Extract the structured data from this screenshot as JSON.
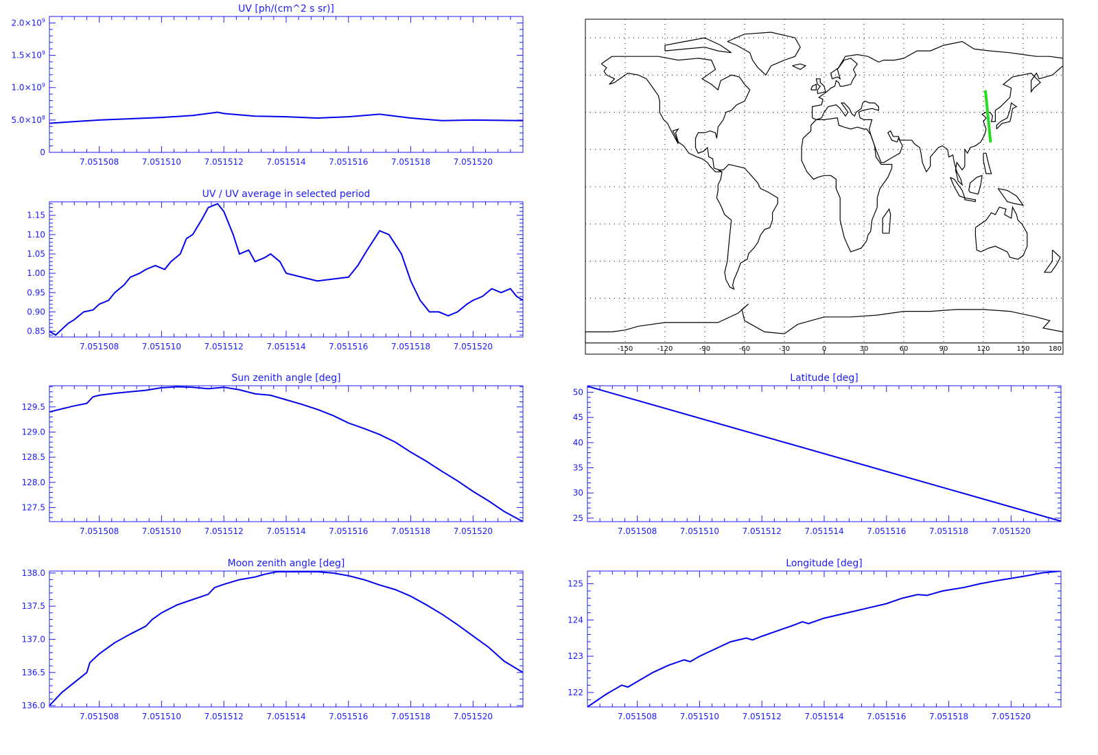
{
  "colors": {
    "axis": "#1a1aff",
    "line": "#0000ee",
    "track": "#22dd22",
    "map": "#000000",
    "grid": "#000000"
  },
  "chart_data": [
    {
      "id": "uv",
      "type": "line",
      "title": "UV [ph/(cm^2 s sr)]",
      "xlim": [
        7.0515064,
        7.0515216
      ],
      "ylim": [
        0,
        2100000000
      ],
      "xticks": [
        "7.051508",
        "7.051510",
        "7.051512",
        "7.051514",
        "7.051516",
        "7.051518",
        "7.051520"
      ],
      "xtick_values": [
        7.051508,
        7.05151,
        7.051512,
        7.051514,
        7.051516,
        7.051518,
        7.05152
      ],
      "yticks": [
        {
          "value": 0,
          "m": "0",
          "e": ""
        },
        {
          "value": 500000000,
          "m": "5.0×10",
          "e": "8"
        },
        {
          "value": 1000000000,
          "m": "1.0×10",
          "e": "9"
        },
        {
          "value": 1500000000,
          "m": "1.5×10",
          "e": "9"
        },
        {
          "value": 2000000000,
          "m": "2.0×10",
          "e": "9"
        }
      ],
      "x": [
        7.0515064,
        7.051507,
        7.051508,
        7.051509,
        7.05151,
        7.051511,
        7.0515118,
        7.051512,
        7.051513,
        7.051514,
        7.051515,
        7.051516,
        7.051517,
        7.051518,
        7.051519,
        7.05152,
        7.0515216
      ],
      "y": [
        450000000,
        470000000,
        500000000,
        520000000,
        540000000,
        570000000,
        620000000,
        600000000,
        560000000,
        550000000,
        530000000,
        550000000,
        590000000,
        530000000,
        490000000,
        500000000,
        490000000
      ]
    },
    {
      "id": "ratio",
      "type": "line",
      "title": "UV / UV average in selected period",
      "xlim": [
        7.0515064,
        7.0515216
      ],
      "ylim": [
        0.835,
        1.185
      ],
      "xticks": [
        "7.051508",
        "7.051510",
        "7.051512",
        "7.051514",
        "7.051516",
        "7.051518",
        "7.051520"
      ],
      "xtick_values": [
        7.051508,
        7.05151,
        7.051512,
        7.051514,
        7.051516,
        7.051518,
        7.05152
      ],
      "yticks": [
        {
          "value": 0.85,
          "m": "0.85",
          "e": ""
        },
        {
          "value": 0.9,
          "m": "0.90",
          "e": ""
        },
        {
          "value": 0.95,
          "m": "0.95",
          "e": ""
        },
        {
          "value": 1.0,
          "m": "1.00",
          "e": ""
        },
        {
          "value": 1.05,
          "m": "1.05",
          "e": ""
        },
        {
          "value": 1.1,
          "m": "1.10",
          "e": ""
        },
        {
          "value": 1.15,
          "m": "1.15",
          "e": ""
        }
      ],
      "x": [
        7.0515064,
        7.0515066,
        7.0515068,
        7.051507,
        7.0515072,
        7.0515075,
        7.0515078,
        7.051508,
        7.0515083,
        7.0515085,
        7.0515088,
        7.051509,
        7.0515093,
        7.0515095,
        7.0515098,
        7.0515101,
        7.0515103,
        7.0515106,
        7.0515108,
        7.051511,
        7.0515113,
        7.0515115,
        7.0515118,
        7.051512,
        7.0515123,
        7.0515125,
        7.0515128,
        7.051513,
        7.0515133,
        7.0515135,
        7.0515138,
        7.051514,
        7.051515,
        7.051516,
        7.0515163,
        7.0515166,
        7.051517,
        7.0515173,
        7.0515177,
        7.051518,
        7.0515183,
        7.0515186,
        7.0515189,
        7.0515192,
        7.0515195,
        7.0515198,
        7.05152,
        7.0515203,
        7.0515206,
        7.0515209,
        7.0515212,
        7.0515214,
        7.0515216
      ],
      "y": [
        0.85,
        0.84,
        0.855,
        0.87,
        0.88,
        0.9,
        0.905,
        0.92,
        0.93,
        0.95,
        0.97,
        0.99,
        1.0,
        1.01,
        1.02,
        1.01,
        1.03,
        1.05,
        1.09,
        1.1,
        1.14,
        1.17,
        1.18,
        1.16,
        1.1,
        1.05,
        1.06,
        1.03,
        1.04,
        1.05,
        1.03,
        1.0,
        0.98,
        0.99,
        1.02,
        1.06,
        1.11,
        1.1,
        1.05,
        0.98,
        0.93,
        0.9,
        0.9,
        0.89,
        0.9,
        0.92,
        0.93,
        0.94,
        0.96,
        0.95,
        0.96,
        0.94,
        0.93
      ]
    },
    {
      "id": "sun",
      "type": "line",
      "title": "Sun zenith angle [deg]",
      "xlim": [
        7.0515064,
        7.0515216
      ],
      "ylim": [
        127.22,
        129.92
      ],
      "xticks": [
        "7.051508",
        "7.051510",
        "7.051512",
        "7.051514",
        "7.051516",
        "7.051518",
        "7.051520"
      ],
      "xtick_values": [
        7.051508,
        7.05151,
        7.051512,
        7.051514,
        7.051516,
        7.051518,
        7.05152
      ],
      "yticks": [
        {
          "value": 127.5,
          "m": "127.5",
          "e": ""
        },
        {
          "value": 128.0,
          "m": "128.0",
          "e": ""
        },
        {
          "value": 128.5,
          "m": "128.5",
          "e": ""
        },
        {
          "value": 129.0,
          "m": "129.0",
          "e": ""
        },
        {
          "value": 129.5,
          "m": "129.5",
          "e": ""
        }
      ],
      "x": [
        7.0515064,
        7.0515068,
        7.0515072,
        7.0515076,
        7.0515078,
        7.051508,
        7.0515085,
        7.051509,
        7.0515095,
        7.05151,
        7.0515105,
        7.051511,
        7.0515115,
        7.051512,
        7.0515125,
        7.051513,
        7.0515135,
        7.051514,
        7.0515145,
        7.051515,
        7.0515155,
        7.051516,
        7.0515165,
        7.051517,
        7.0515175,
        7.051518,
        7.0515185,
        7.051519,
        7.0515195,
        7.05152,
        7.0515205,
        7.051521,
        7.0515216
      ],
      "y": [
        129.4,
        129.46,
        129.52,
        129.57,
        129.7,
        129.73,
        129.77,
        129.8,
        129.83,
        129.88,
        129.9,
        129.89,
        129.86,
        129.89,
        129.84,
        129.76,
        129.73,
        129.64,
        129.55,
        129.45,
        129.33,
        129.18,
        129.07,
        128.95,
        128.8,
        128.6,
        128.42,
        128.22,
        128.03,
        127.82,
        127.63,
        127.42,
        127.22
      ]
    },
    {
      "id": "lat",
      "type": "line",
      "title": "Latitude [deg]",
      "xlim": [
        7.0515064,
        7.0515216
      ],
      "ylim": [
        24.3,
        51.3
      ],
      "xticks": [
        "7.051508",
        "7.051510",
        "7.051512",
        "7.051514",
        "7.051516",
        "7.051518",
        "7.051520"
      ],
      "xtick_values": [
        7.051508,
        7.05151,
        7.051512,
        7.051514,
        7.051516,
        7.051518,
        7.05152
      ],
      "yticks": [
        {
          "value": 25,
          "m": "25",
          "e": ""
        },
        {
          "value": 30,
          "m": "30",
          "e": ""
        },
        {
          "value": 35,
          "m": "35",
          "e": ""
        },
        {
          "value": 40,
          "m": "40",
          "e": ""
        },
        {
          "value": 45,
          "m": "45",
          "e": ""
        },
        {
          "value": 50,
          "m": "50",
          "e": ""
        }
      ],
      "x": [
        7.0515064,
        7.0515216
      ],
      "y": [
        51.2,
        24.4
      ]
    },
    {
      "id": "moon",
      "type": "line",
      "title": "Moon zenith angle [deg]",
      "xlim": [
        7.0515064,
        7.0515216
      ],
      "ylim": [
        135.98,
        138.03
      ],
      "xticks": [
        "7.051508",
        "7.051510",
        "7.051512",
        "7.051514",
        "7.051516",
        "7.051518",
        "7.051520"
      ],
      "xtick_values": [
        7.051508,
        7.05151,
        7.051512,
        7.051514,
        7.051516,
        7.051518,
        7.05152
      ],
      "yticks": [
        {
          "value": 136.0,
          "m": "136.0",
          "e": ""
        },
        {
          "value": 136.5,
          "m": "136.5",
          "e": ""
        },
        {
          "value": 137.0,
          "m": "137.0",
          "e": ""
        },
        {
          "value": 137.5,
          "m": "137.5",
          "e": ""
        },
        {
          "value": 138.0,
          "m": "138.0",
          "e": ""
        }
      ],
      "x": [
        7.0515064,
        7.0515068,
        7.0515072,
        7.0515076,
        7.0515077,
        7.051508,
        7.0515085,
        7.051509,
        7.0515095,
        7.0515097,
        7.05151,
        7.0515105,
        7.051511,
        7.0515115,
        7.0515117,
        7.051512,
        7.0515125,
        7.051513,
        7.0515133,
        7.0515137,
        7.051514,
        7.051515,
        7.0515155,
        7.051516,
        7.0515165,
        7.051517,
        7.0515175,
        7.051518,
        7.0515185,
        7.051519,
        7.0515195,
        7.05152,
        7.0515205,
        7.051521,
        7.0515216
      ],
      "y": [
        136.0,
        136.2,
        136.35,
        136.5,
        136.65,
        136.78,
        136.95,
        137.08,
        137.2,
        137.3,
        137.4,
        137.52,
        137.6,
        137.68,
        137.78,
        137.83,
        137.9,
        137.94,
        137.98,
        138.02,
        138.02,
        138.02,
        138.0,
        137.96,
        137.9,
        137.82,
        137.75,
        137.65,
        137.52,
        137.38,
        137.22,
        137.05,
        136.88,
        136.67,
        136.5
      ]
    },
    {
      "id": "lon",
      "type": "line",
      "title": "Longitude [deg]",
      "xlim": [
        7.0515064,
        7.0515216
      ],
      "ylim": [
        121.6,
        125.35
      ],
      "xticks": [
        "7.051508",
        "7.051510",
        "7.051512",
        "7.051514",
        "7.051516",
        "7.051518",
        "7.051520"
      ],
      "xtick_values": [
        7.051508,
        7.05151,
        7.051512,
        7.051514,
        7.051516,
        7.051518,
        7.05152
      ],
      "yticks": [
        {
          "value": 122,
          "m": "122",
          "e": ""
        },
        {
          "value": 123,
          "m": "123",
          "e": ""
        },
        {
          "value": 124,
          "m": "124",
          "e": ""
        },
        {
          "value": 125,
          "m": "125",
          "e": ""
        }
      ],
      "x": [
        7.0515064,
        7.051507,
        7.0515075,
        7.0515077,
        7.051508,
        7.0515085,
        7.051509,
        7.0515095,
        7.0515097,
        7.05151,
        7.0515105,
        7.051511,
        7.0515115,
        7.0515117,
        7.051512,
        7.0515125,
        7.051513,
        7.0515133,
        7.0515135,
        7.051514,
        7.0515145,
        7.051515,
        7.0515155,
        7.051516,
        7.0515165,
        7.051517,
        7.0515173,
        7.0515178,
        7.0515185,
        7.051519,
        7.0515195,
        7.05152,
        7.0515205,
        7.051521,
        7.0515216
      ],
      "y": [
        121.6,
        121.95,
        122.2,
        122.15,
        122.3,
        122.55,
        122.75,
        122.9,
        122.85,
        123.0,
        123.2,
        123.4,
        123.5,
        123.45,
        123.55,
        123.7,
        123.85,
        123.95,
        123.9,
        124.05,
        124.15,
        124.25,
        124.35,
        124.45,
        124.6,
        124.7,
        124.68,
        124.8,
        124.9,
        125.0,
        125.08,
        125.15,
        125.22,
        125.3,
        125.35
      ]
    },
    {
      "id": "map",
      "type": "map",
      "xlim": [
        -180,
        180
      ],
      "ylim": [
        -90,
        90
      ],
      "xticks": [
        "-150",
        "-120",
        "-90",
        "-60",
        "-30",
        "0",
        "30",
        "60",
        "90",
        "120",
        "150",
        "180"
      ],
      "xtick_values": [
        -150,
        -120,
        -90,
        -60,
        -30,
        0,
        30,
        60,
        90,
        120,
        150,
        180
      ],
      "track": {
        "lon": [
          121.6,
          125.35
        ],
        "lat": [
          51.2,
          24.4
        ]
      }
    }
  ]
}
